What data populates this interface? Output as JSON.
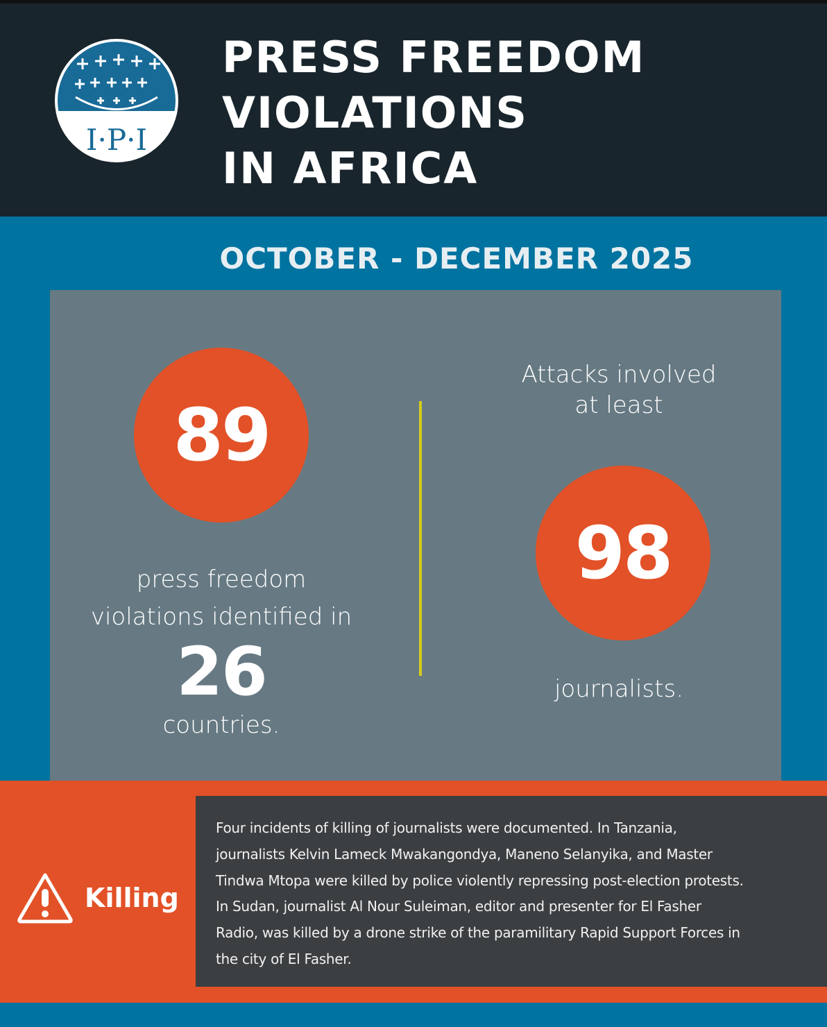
{
  "header": {
    "logo_text": "I·P·I",
    "title_lines": [
      "PRESS FREEDOM",
      "VIOLATIONS",
      "IN AFRICA"
    ]
  },
  "period": "OCTOBER - DECEMBER 2025",
  "stats": {
    "violations": {
      "number": "89",
      "text_1": "press freedom",
      "text_2": "violations identified in",
      "countries": "26",
      "text_3": "countries."
    },
    "journalists": {
      "intro_1": "Attacks involved",
      "intro_2": "at least",
      "number": "98",
      "text": "journalists."
    }
  },
  "killing": {
    "icon": "warning-triangle-icon",
    "label": "Killing",
    "lines": [
      "Four incidents of killing of journalists were documented. In Tanzania,",
      "journalists Kelvin Lameck Mwakangondya, Maneno Selanyika, and Master",
      "Tindwa Mtopa were killed by police violently repressing post-election protests.",
      "In Sudan, journalist Al Nour Suleiman, editor and presenter for El Fasher",
      "Radio, was killed by a drone strike of the paramilitary Rapid Support Forces in",
      "the city of El Fasher."
    ]
  },
  "colors": {
    "dark": "#19252c",
    "blue": "#0073a0",
    "panel": "#677a83",
    "orange": "#e25127",
    "box": "#3b3f42",
    "divider": "#d4cc1c"
  }
}
